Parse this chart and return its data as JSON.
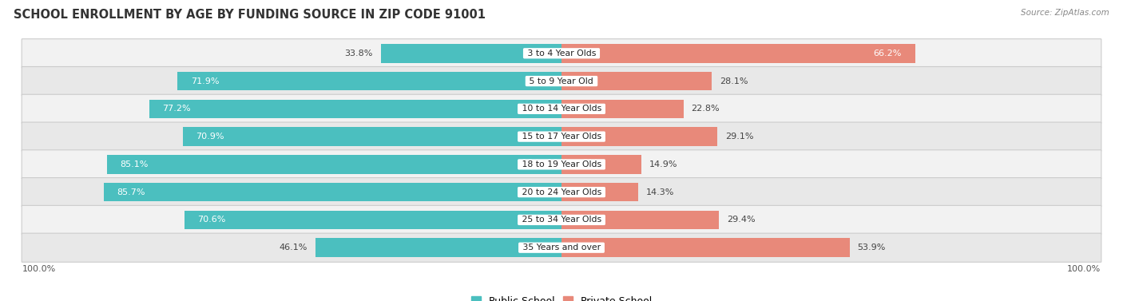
{
  "title": "SCHOOL ENROLLMENT BY AGE BY FUNDING SOURCE IN ZIP CODE 91001",
  "source": "Source: ZipAtlas.com",
  "categories": [
    "3 to 4 Year Olds",
    "5 to 9 Year Old",
    "10 to 14 Year Olds",
    "15 to 17 Year Olds",
    "18 to 19 Year Olds",
    "20 to 24 Year Olds",
    "25 to 34 Year Olds",
    "35 Years and over"
  ],
  "public_values": [
    33.8,
    71.9,
    77.2,
    70.9,
    85.1,
    85.7,
    70.6,
    46.1
  ],
  "private_values": [
    66.2,
    28.1,
    22.8,
    29.1,
    14.9,
    14.3,
    29.4,
    53.9
  ],
  "public_color": "#4BBFBF",
  "private_color": "#E8897A",
  "row_colors": [
    "#F2F2F2",
    "#E8E8E8"
  ],
  "row_border_color": "#CCCCCC",
  "title_fontsize": 10.5,
  "bar_label_fontsize": 8,
  "legend_fontsize": 9,
  "axis_label_fontsize": 8,
  "label_inside_threshold": 55
}
